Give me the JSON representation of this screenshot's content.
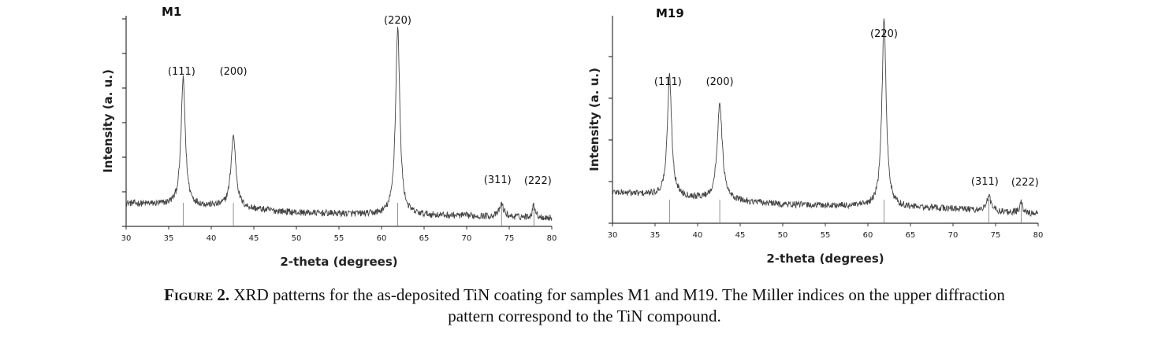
{
  "chart_data": [
    {
      "type": "line",
      "title": "M1",
      "xlabel": "2-theta (degrees)",
      "ylabel": "Intensity (a. u.)",
      "xlim": [
        30,
        80
      ],
      "ylim": [
        0,
        100
      ],
      "x_ticks": [
        30,
        35,
        40,
        45,
        50,
        55,
        60,
        65,
        70,
        75,
        80
      ],
      "grid": false,
      "baseline": [
        [
          30,
          11
        ],
        [
          40,
          9.5
        ],
        [
          50,
          6.5
        ],
        [
          60,
          5.5
        ],
        [
          70,
          5
        ],
        [
          80,
          4
        ]
      ],
      "peaks": [
        {
          "label": "(111)",
          "x": 36.7,
          "height": 60,
          "width": 0.3
        },
        {
          "label": "(200)",
          "x": 42.6,
          "height": 34,
          "width": 0.35
        },
        {
          "label": "(220)",
          "x": 61.9,
          "height": 89,
          "width": 0.3
        },
        {
          "label": "(311)",
          "x": 74.1,
          "height": 6,
          "width": 0.3
        },
        {
          "label": "(222)",
          "x": 77.9,
          "height": 6,
          "width": 0.2
        }
      ],
      "reference_lines": [
        36.7,
        42.6,
        61.9,
        74.1,
        77.9
      ]
    },
    {
      "type": "line",
      "title": "M19",
      "xlabel": "2-theta (degrees)",
      "ylabel": "Intensity (a. u.)",
      "xlim": [
        30,
        80
      ],
      "ylim": [
        0,
        100
      ],
      "x_ticks": [
        30,
        35,
        40,
        45,
        50,
        55,
        60,
        65,
        70,
        75,
        80
      ],
      "grid": false,
      "baseline": [
        [
          30,
          15
        ],
        [
          40,
          12
        ],
        [
          50,
          9
        ],
        [
          60,
          8
        ],
        [
          70,
          7
        ],
        [
          80,
          4.5
        ]
      ],
      "peaks": [
        {
          "label": "(111)",
          "x": 36.7,
          "height": 58,
          "width": 0.3
        },
        {
          "label": "(200)",
          "x": 42.6,
          "height": 47,
          "width": 0.35
        },
        {
          "label": "(220)",
          "x": 61.9,
          "height": 90,
          "width": 0.3
        },
        {
          "label": "(311)",
          "x": 74.2,
          "height": 7,
          "width": 0.3
        },
        {
          "label": "(222)",
          "x": 78.0,
          "height": 5,
          "width": 0.2
        }
      ],
      "reference_lines": [
        36.7,
        42.6,
        61.9,
        74.2,
        78.0
      ]
    }
  ],
  "caption": {
    "label": "Figure 2.",
    "text_line1": " XRD patterns for the as-deposited TiN coating for samples M1 and M19. The Miller indices on the upper diffraction",
    "text_line2": "pattern correspond to the TiN compound."
  }
}
